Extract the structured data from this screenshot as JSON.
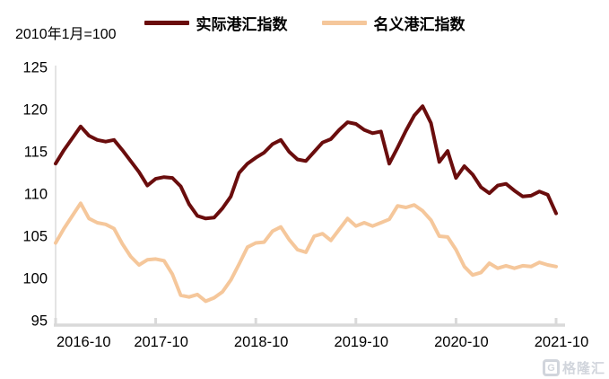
{
  "chart": {
    "subtitle": "2010年1月=100",
    "watermark": "格隆汇",
    "watermark_logo": "G"
  },
  "chart_data": {
    "type": "line",
    "title": "",
    "xlabel": "",
    "ylabel": "",
    "x_start": "2016-10",
    "x_freq": "monthly",
    "x_tick_labels": [
      "2016-10",
      "2017-10",
      "2018-10",
      "2019-10",
      "2020-10",
      "2021-10"
    ],
    "y_ticks": [
      95,
      100,
      105,
      110,
      115,
      120,
      125
    ],
    "ylim": [
      95,
      125
    ],
    "grid": false,
    "legend_position": "top",
    "axis_color": "#d9d9d9",
    "series": [
      {
        "name": "实际港汇指数",
        "color": "#6a0d0d",
        "values": [
          113.6,
          115.2,
          116.6,
          118.0,
          116.9,
          116.4,
          116.2,
          116.4,
          115.2,
          113.9,
          112.6,
          111.0,
          111.8,
          112.0,
          111.9,
          110.9,
          108.8,
          107.4,
          107.1,
          107.2,
          108.3,
          109.7,
          112.5,
          113.6,
          114.3,
          114.9,
          115.9,
          116.4,
          115.0,
          114.1,
          113.9,
          115.0,
          116.1,
          116.5,
          117.6,
          118.5,
          118.3,
          117.6,
          117.2,
          117.4,
          113.6,
          115.5,
          117.5,
          119.3,
          120.4,
          118.4,
          113.8,
          115.1,
          111.9,
          113.3,
          112.3,
          110.8,
          110.1,
          111.0,
          111.2,
          110.4,
          109.7,
          109.8,
          110.3,
          109.9,
          107.7
        ]
      },
      {
        "name": "名义港汇指数",
        "color": "#f5c79b",
        "values": [
          104.2,
          105.9,
          107.4,
          108.9,
          107.1,
          106.6,
          106.4,
          105.9,
          104.1,
          102.6,
          101.6,
          102.2,
          102.3,
          102.1,
          100.5,
          98.0,
          97.8,
          98.1,
          97.3,
          97.7,
          98.4,
          99.8,
          101.7,
          103.7,
          104.2,
          104.3,
          105.6,
          106.1,
          104.6,
          103.4,
          103.1,
          105.0,
          105.3,
          104.5,
          105.8,
          107.1,
          106.2,
          106.6,
          106.2,
          106.6,
          107.0,
          108.6,
          108.4,
          108.7,
          108.0,
          106.9,
          105.0,
          104.9,
          103.4,
          101.4,
          100.4,
          100.7,
          101.8,
          101.2,
          101.5,
          101.2,
          101.5,
          101.4,
          101.9,
          101.6,
          101.4
        ]
      }
    ]
  }
}
